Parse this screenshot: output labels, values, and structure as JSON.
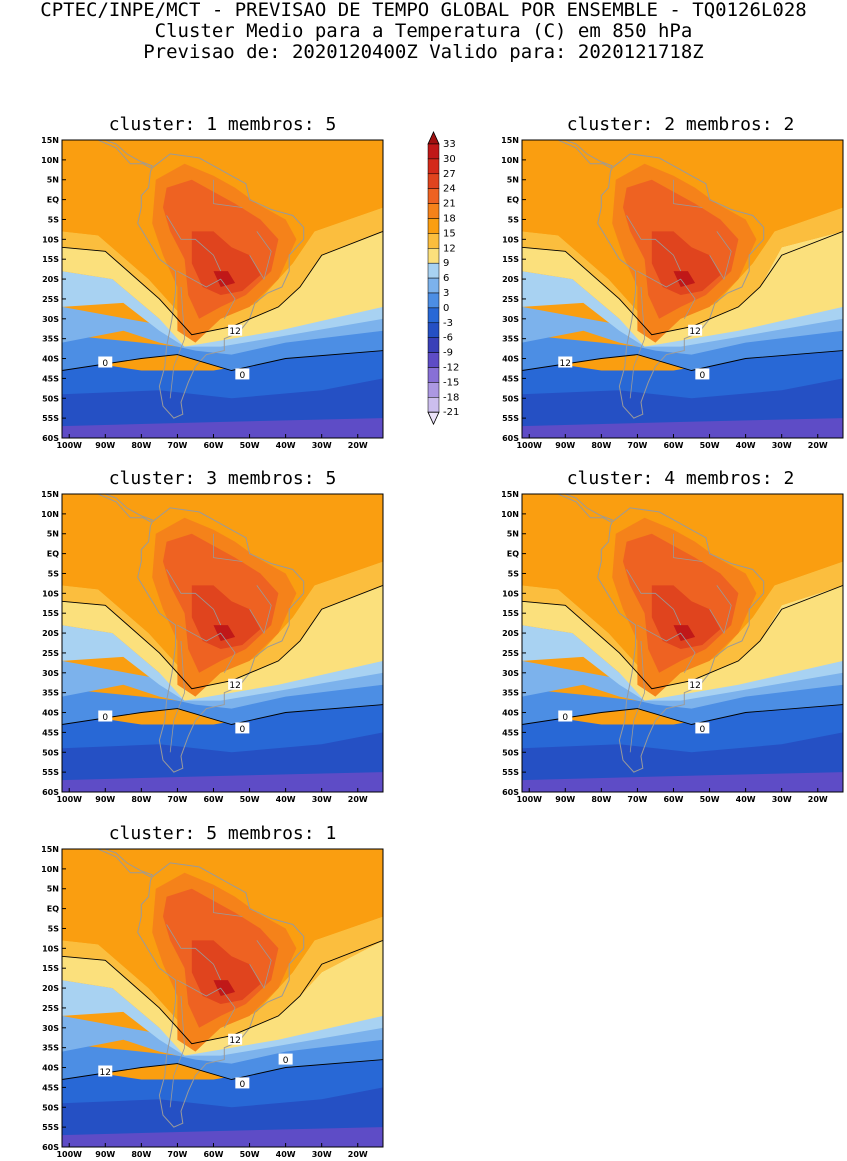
{
  "header": {
    "line1": "CPTEC/INPE/MCT - PREVISAO DE TEMPO GLOBAL POR ENSEMBLE - TQ0126L028",
    "line2": "Cluster Medio para a Temperatura (C) em 850 hPa",
    "line3": "Previsao de: 2020120400Z   Valido para: 2020121718Z"
  },
  "map": {
    "lat_labels": [
      "15N",
      "10N",
      "5N",
      "EQ",
      "5S",
      "10S",
      "15S",
      "20S",
      "25S",
      "30S",
      "35S",
      "40S",
      "45S",
      "50S",
      "55S",
      "60S"
    ],
    "lon_labels": [
      "100W",
      "90W",
      "80W",
      "70W",
      "60W",
      "50W",
      "40W",
      "30W",
      "20W"
    ]
  },
  "panels": [
    {
      "title": "cluster: 1   membros: 5",
      "labels": [
        "12",
        "0",
        "0"
      ],
      "variant": 1
    },
    {
      "title": "cluster: 2   membros: 2",
      "labels": [
        "12",
        "12",
        "0"
      ],
      "variant": 2
    },
    {
      "title": "cluster: 3   membros: 5",
      "labels": [
        "12",
        "0",
        "0"
      ],
      "variant": 3
    },
    {
      "title": "cluster: 4   membros: 2",
      "labels": [
        "12",
        "0",
        "0"
      ],
      "variant": 4
    },
    {
      "title": "cluster: 5   membros: 1",
      "labels": [
        "12",
        "12",
        "0",
        "0"
      ],
      "variant": 5
    }
  ],
  "colorbar": {
    "labels": [
      "33",
      "30",
      "27",
      "24",
      "21",
      "18",
      "15",
      "12",
      "9",
      "6",
      "3",
      "0",
      "-3",
      "-6",
      "-9",
      "-12",
      "-15",
      "-18",
      "-21"
    ],
    "colors": [
      "#a01010",
      "#c01818",
      "#d42a1a",
      "#e0441e",
      "#ee6222",
      "#f5821a",
      "#fa9e10",
      "#fbbe3e",
      "#fbe07c",
      "#a8d2f2",
      "#7cb2ec",
      "#4c8ee4",
      "#2868d6",
      "#2550c4",
      "#3a40b8",
      "#5e4cc6",
      "#8870d6",
      "#ac98e2",
      "#ccbeee",
      "#ebe2f8"
    ],
    "level_colors": {
      "t18_21": "#f5821a",
      "t21_24": "#ee6222",
      "t24_27": "#e0441e",
      "t27_30": "#c01818",
      "t15_18": "#fa9e10",
      "t12_15": "#fbbe3e",
      "t9_12": "#fbe07c",
      "t6_9": "#a8d2f2",
      "t3_6": "#7cb2ec",
      "t0_3": "#4c8ee4",
      "tm3_0": "#2868d6",
      "tm6_m3": "#2550c4",
      "tm9_m6": "#5e4cc6",
      "tm12_m9": "#8870d6"
    }
  }
}
